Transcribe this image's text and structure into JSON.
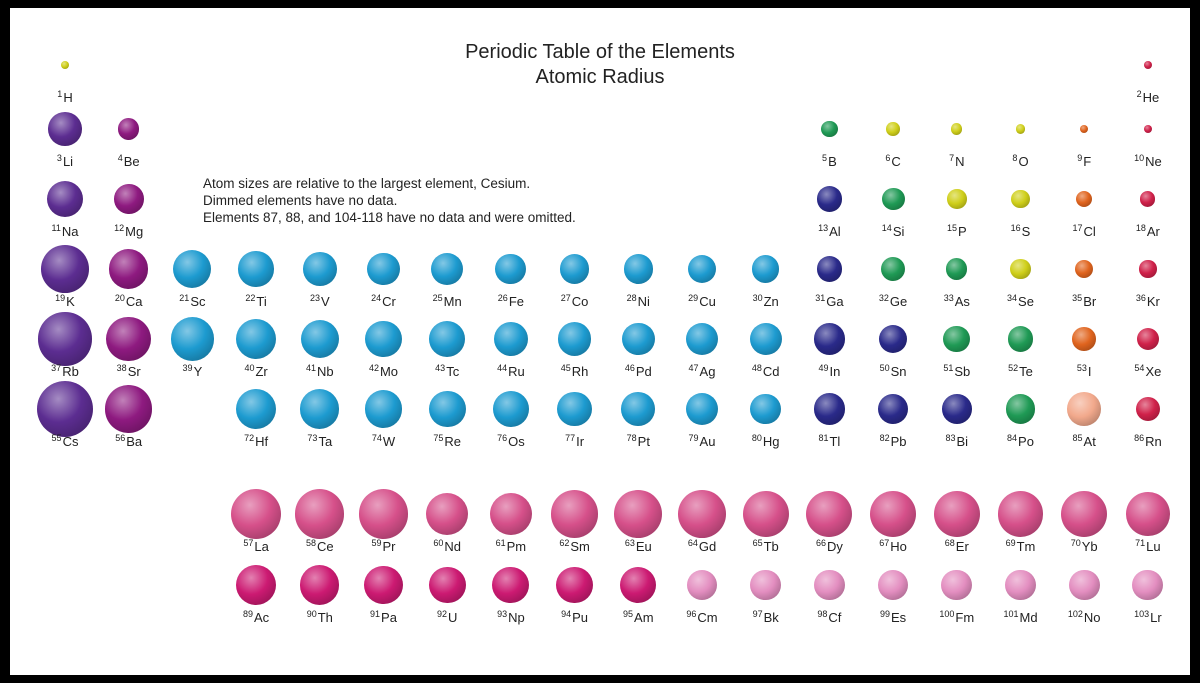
{
  "title": {
    "line1": "Periodic Table of the Elements",
    "line2": "Atomic Radius"
  },
  "notes": [
    "Atom sizes are relative to the largest element, Cesium.",
    "Dimmed elements have no data.",
    "Elements 87, 88, and 104-118 have no data and were omitted."
  ],
  "colors": {
    "alkali": "#5c2d91",
    "alkaline": "#8e1a80",
    "transition": "#1d9bd0",
    "post_transition": "#2a2a8a",
    "metalloid_nonmetal": "#1f9a55",
    "nonmetal_yellow": "#cfcf1a",
    "halogen": "#e0641e",
    "noble": "#d0214a",
    "lanthanide": "#d6508a",
    "actinide": "#cc1a72",
    "dimmed_actinide": "#e38ec0",
    "dimmed_halogen": "#f2a98c"
  },
  "elements": [
    {
      "n": 1,
      "s": "H",
      "c": "nonmetal_yellow",
      "r": 0.15,
      "col": 1,
      "row": 1
    },
    {
      "n": 2,
      "s": "He",
      "c": "noble",
      "r": 0.1,
      "col": 18,
      "row": 1
    },
    {
      "n": 3,
      "s": "Li",
      "c": "alkali",
      "r": 0.6,
      "col": 1,
      "row": 2
    },
    {
      "n": 4,
      "s": "Be",
      "c": "alkaline",
      "r": 0.38,
      "col": 2,
      "row": 2
    },
    {
      "n": 5,
      "s": "B",
      "c": "metalloid_nonmetal",
      "r": 0.3,
      "col": 13,
      "row": 2
    },
    {
      "n": 6,
      "s": "C",
      "c": "nonmetal_yellow",
      "r": 0.24,
      "col": 14,
      "row": 2
    },
    {
      "n": 7,
      "s": "N",
      "c": "nonmetal_yellow",
      "r": 0.2,
      "col": 15,
      "row": 2
    },
    {
      "n": 8,
      "s": "O",
      "c": "nonmetal_yellow",
      "r": 0.17,
      "col": 16,
      "row": 2
    },
    {
      "n": 9,
      "s": "F",
      "c": "halogen",
      "r": 0.14,
      "col": 17,
      "row": 2
    },
    {
      "n": 10,
      "s": "Ne",
      "c": "noble",
      "r": 0.12,
      "col": 18,
      "row": 2
    },
    {
      "n": 11,
      "s": "Na",
      "c": "alkali",
      "r": 0.65,
      "col": 1,
      "row": 3
    },
    {
      "n": 12,
      "s": "Mg",
      "c": "alkaline",
      "r": 0.53,
      "col": 2,
      "row": 3
    },
    {
      "n": 13,
      "s": "Al",
      "c": "post_transition",
      "r": 0.45,
      "col": 13,
      "row": 3
    },
    {
      "n": 14,
      "s": "Si",
      "c": "metalloid_nonmetal",
      "r": 0.41,
      "col": 14,
      "row": 3
    },
    {
      "n": 15,
      "s": "P",
      "c": "nonmetal_yellow",
      "r": 0.35,
      "col": 15,
      "row": 3
    },
    {
      "n": 16,
      "s": "S",
      "c": "nonmetal_yellow",
      "r": 0.33,
      "col": 16,
      "row": 3
    },
    {
      "n": 17,
      "s": "Cl",
      "c": "halogen",
      "r": 0.29,
      "col": 17,
      "row": 3
    },
    {
      "n": 18,
      "s": "Ar",
      "c": "noble",
      "r": 0.27,
      "col": 18,
      "row": 3
    },
    {
      "n": 19,
      "s": "K",
      "c": "alkali",
      "r": 0.85,
      "col": 1,
      "row": 4
    },
    {
      "n": 20,
      "s": "Ca",
      "c": "alkaline",
      "r": 0.7,
      "col": 2,
      "row": 4
    },
    {
      "n": 21,
      "s": "Sc",
      "c": "transition",
      "r": 0.68,
      "col": 3,
      "row": 4
    },
    {
      "n": 22,
      "s": "Ti",
      "c": "transition",
      "r": 0.63,
      "col": 4,
      "row": 4
    },
    {
      "n": 23,
      "s": "V",
      "c": "transition",
      "r": 0.6,
      "col": 5,
      "row": 4
    },
    {
      "n": 24,
      "s": "Cr",
      "c": "transition",
      "r": 0.58,
      "col": 6,
      "row": 4
    },
    {
      "n": 25,
      "s": "Mn",
      "c": "transition",
      "r": 0.57,
      "col": 7,
      "row": 4
    },
    {
      "n": 26,
      "s": "Fe",
      "c": "transition",
      "r": 0.55,
      "col": 8,
      "row": 4
    },
    {
      "n": 27,
      "s": "Co",
      "c": "transition",
      "r": 0.53,
      "col": 9,
      "row": 4
    },
    {
      "n": 28,
      "s": "Ni",
      "c": "transition",
      "r": 0.52,
      "col": 10,
      "row": 4
    },
    {
      "n": 29,
      "s": "Cu",
      "c": "transition",
      "r": 0.5,
      "col": 11,
      "row": 4
    },
    {
      "n": 30,
      "s": "Zn",
      "c": "transition",
      "r": 0.49,
      "col": 12,
      "row": 4
    },
    {
      "n": 31,
      "s": "Ga",
      "c": "post_transition",
      "r": 0.45,
      "col": 13,
      "row": 4
    },
    {
      "n": 32,
      "s": "Ge",
      "c": "metalloid_nonmetal",
      "r": 0.43,
      "col": 14,
      "row": 4
    },
    {
      "n": 33,
      "s": "As",
      "c": "metalloid_nonmetal",
      "r": 0.38,
      "col": 15,
      "row": 4
    },
    {
      "n": 34,
      "s": "Se",
      "c": "nonmetal_yellow",
      "r": 0.36,
      "col": 16,
      "row": 4
    },
    {
      "n": 35,
      "s": "Br",
      "c": "halogen",
      "r": 0.33,
      "col": 17,
      "row": 4
    },
    {
      "n": 36,
      "s": "Kr",
      "c": "noble",
      "r": 0.31,
      "col": 18,
      "row": 4
    },
    {
      "n": 37,
      "s": "Rb",
      "c": "alkali",
      "r": 0.95,
      "col": 1,
      "row": 5
    },
    {
      "n": 38,
      "s": "Sr",
      "c": "alkaline",
      "r": 0.8,
      "col": 2,
      "row": 5
    },
    {
      "n": 39,
      "s": "Y",
      "c": "transition",
      "r": 0.78,
      "col": 3,
      "row": 5
    },
    {
      "n": 40,
      "s": "Zr",
      "c": "transition",
      "r": 0.72,
      "col": 4,
      "row": 5
    },
    {
      "n": 41,
      "s": "Nb",
      "c": "transition",
      "r": 0.68,
      "col": 5,
      "row": 5
    },
    {
      "n": 42,
      "s": "Mo",
      "c": "transition",
      "r": 0.66,
      "col": 6,
      "row": 5
    },
    {
      "n": 43,
      "s": "Tc",
      "c": "transition",
      "r": 0.64,
      "col": 7,
      "row": 5
    },
    {
      "n": 44,
      "s": "Ru",
      "c": "transition",
      "r": 0.62,
      "col": 8,
      "row": 5
    },
    {
      "n": 45,
      "s": "Rh",
      "c": "transition",
      "r": 0.6,
      "col": 9,
      "row": 5
    },
    {
      "n": 46,
      "s": "Pd",
      "c": "transition",
      "r": 0.58,
      "col": 10,
      "row": 5
    },
    {
      "n": 47,
      "s": "Ag",
      "c": "transition",
      "r": 0.58,
      "col": 11,
      "row": 5
    },
    {
      "n": 48,
      "s": "Cd",
      "c": "transition",
      "r": 0.57,
      "col": 12,
      "row": 5
    },
    {
      "n": 49,
      "s": "In",
      "c": "post_transition",
      "r": 0.56,
      "col": 13,
      "row": 5
    },
    {
      "n": 50,
      "s": "Sn",
      "c": "post_transition",
      "r": 0.5,
      "col": 14,
      "row": 5
    },
    {
      "n": 51,
      "s": "Sb",
      "c": "metalloid_nonmetal",
      "r": 0.48,
      "col": 15,
      "row": 5
    },
    {
      "n": 52,
      "s": "Te",
      "c": "metalloid_nonmetal",
      "r": 0.45,
      "col": 16,
      "row": 5
    },
    {
      "n": 53,
      "s": "I",
      "c": "halogen",
      "r": 0.42,
      "col": 17,
      "row": 5
    },
    {
      "n": 54,
      "s": "Xe",
      "c": "noble",
      "r": 0.4,
      "col": 18,
      "row": 5
    },
    {
      "n": 55,
      "s": "Cs",
      "c": "alkali",
      "r": 1.0,
      "col": 1,
      "row": 6
    },
    {
      "n": 56,
      "s": "Ba",
      "c": "alkaline",
      "r": 0.85,
      "col": 2,
      "row": 6
    },
    {
      "n": 72,
      "s": "Hf",
      "c": "transition",
      "r": 0.72,
      "col": 4,
      "row": 6
    },
    {
      "n": 73,
      "s": "Ta",
      "c": "transition",
      "r": 0.7,
      "col": 5,
      "row": 6
    },
    {
      "n": 74,
      "s": "W",
      "c": "transition",
      "r": 0.67,
      "col": 6,
      "row": 6
    },
    {
      "n": 75,
      "s": "Re",
      "c": "transition",
      "r": 0.66,
      "col": 7,
      "row": 6
    },
    {
      "n": 76,
      "s": "Os",
      "c": "transition",
      "r": 0.64,
      "col": 8,
      "row": 6
    },
    {
      "n": 77,
      "s": "Ir",
      "c": "transition",
      "r": 0.62,
      "col": 9,
      "row": 6
    },
    {
      "n": 78,
      "s": "Pt",
      "c": "transition",
      "r": 0.6,
      "col": 10,
      "row": 6
    },
    {
      "n": 79,
      "s": "Au",
      "c": "transition",
      "r": 0.58,
      "col": 11,
      "row": 6
    },
    {
      "n": 80,
      "s": "Hg",
      "c": "transition",
      "r": 0.55,
      "col": 12,
      "row": 6
    },
    {
      "n": 81,
      "s": "Tl",
      "c": "post_transition",
      "r": 0.56,
      "col": 13,
      "row": 6
    },
    {
      "n": 82,
      "s": "Pb",
      "c": "post_transition",
      "r": 0.55,
      "col": 14,
      "row": 6
    },
    {
      "n": 83,
      "s": "Bi",
      "c": "post_transition",
      "r": 0.53,
      "col": 15,
      "row": 6
    },
    {
      "n": 84,
      "s": "Po",
      "c": "metalloid_nonmetal",
      "r": 0.52,
      "col": 16,
      "row": 6
    },
    {
      "n": 85,
      "s": "At",
      "c": "dimmed_halogen",
      "r": 0.6,
      "col": 17,
      "row": 6
    },
    {
      "n": 86,
      "s": "Rn",
      "c": "noble",
      "r": 0.43,
      "col": 18,
      "row": 6
    },
    {
      "n": 57,
      "s": "La",
      "c": "lanthanide",
      "r": 0.9,
      "col": 4,
      "row": 8
    },
    {
      "n": 58,
      "s": "Ce",
      "c": "lanthanide",
      "r": 0.88,
      "col": 5,
      "row": 8
    },
    {
      "n": 59,
      "s": "Pr",
      "c": "lanthanide",
      "r": 0.88,
      "col": 6,
      "row": 8
    },
    {
      "n": 60,
      "s": "Nd",
      "c": "lanthanide",
      "r": 0.75,
      "col": 7,
      "row": 8
    },
    {
      "n": 61,
      "s": "Pm",
      "c": "lanthanide",
      "r": 0.75,
      "col": 8,
      "row": 8
    },
    {
      "n": 62,
      "s": "Sm",
      "c": "lanthanide",
      "r": 0.85,
      "col": 9,
      "row": 8
    },
    {
      "n": 63,
      "s": "Eu",
      "c": "lanthanide",
      "r": 0.85,
      "col": 10,
      "row": 8
    },
    {
      "n": 64,
      "s": "Gd",
      "c": "lanthanide",
      "r": 0.85,
      "col": 11,
      "row": 8
    },
    {
      "n": 65,
      "s": "Tb",
      "c": "lanthanide",
      "r": 0.82,
      "col": 12,
      "row": 8
    },
    {
      "n": 66,
      "s": "Dy",
      "c": "lanthanide",
      "r": 0.82,
      "col": 13,
      "row": 8
    },
    {
      "n": 67,
      "s": "Ho",
      "c": "lanthanide",
      "r": 0.82,
      "col": 14,
      "row": 8
    },
    {
      "n": 68,
      "s": "Er",
      "c": "lanthanide",
      "r": 0.82,
      "col": 15,
      "row": 8
    },
    {
      "n": 69,
      "s": "Tm",
      "c": "lanthanide",
      "r": 0.82,
      "col": 16,
      "row": 8
    },
    {
      "n": 70,
      "s": "Yb",
      "c": "lanthanide",
      "r": 0.82,
      "col": 17,
      "row": 8
    },
    {
      "n": 71,
      "s": "Lu",
      "c": "lanthanide",
      "r": 0.78,
      "col": 18,
      "row": 8
    },
    {
      "n": 89,
      "s": "Ac",
      "c": "actinide",
      "r": 0.72,
      "col": 4,
      "row": 9
    },
    {
      "n": 90,
      "s": "Th",
      "c": "actinide",
      "r": 0.7,
      "col": 5,
      "row": 9
    },
    {
      "n": 91,
      "s": "Pa",
      "c": "actinide",
      "r": 0.68,
      "col": 6,
      "row": 9
    },
    {
      "n": 92,
      "s": "U",
      "c": "actinide",
      "r": 0.66,
      "col": 7,
      "row": 9
    },
    {
      "n": 93,
      "s": "Np",
      "c": "actinide",
      "r": 0.66,
      "col": 8,
      "row": 9
    },
    {
      "n": 94,
      "s": "Pu",
      "c": "actinide",
      "r": 0.66,
      "col": 9,
      "row": 9
    },
    {
      "n": 95,
      "s": "Am",
      "c": "actinide",
      "r": 0.65,
      "col": 10,
      "row": 9
    },
    {
      "n": 96,
      "s": "Cm",
      "c": "dimmed_actinide",
      "r": 0.55,
      "col": 11,
      "row": 9
    },
    {
      "n": 97,
      "s": "Bk",
      "c": "dimmed_actinide",
      "r": 0.55,
      "col": 12,
      "row": 9
    },
    {
      "n": 98,
      "s": "Cf",
      "c": "dimmed_actinide",
      "r": 0.55,
      "col": 13,
      "row": 9
    },
    {
      "n": 99,
      "s": "Es",
      "c": "dimmed_actinide",
      "r": 0.55,
      "col": 14,
      "row": 9
    },
    {
      "n": 100,
      "s": "Fm",
      "c": "dimmed_actinide",
      "r": 0.55,
      "col": 15,
      "row": 9
    },
    {
      "n": 101,
      "s": "Md",
      "c": "dimmed_actinide",
      "r": 0.55,
      "col": 16,
      "row": 9
    },
    {
      "n": 102,
      "s": "No",
      "c": "dimmed_actinide",
      "r": 0.55,
      "col": 17,
      "row": 9
    },
    {
      "n": 103,
      "s": "Lr",
      "c": "dimmed_actinide",
      "r": 0.55,
      "col": 18,
      "row": 9
    }
  ]
}
